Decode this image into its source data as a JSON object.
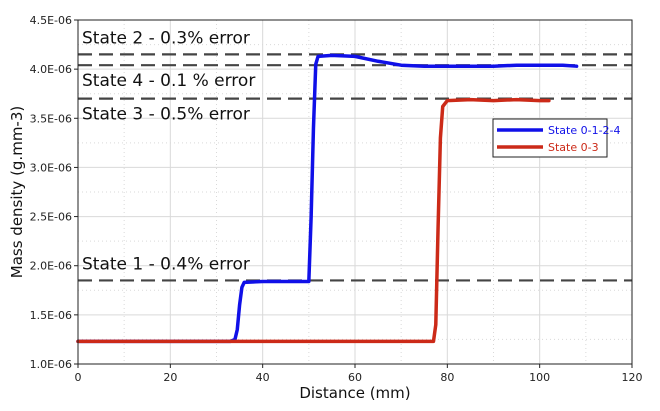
{
  "chart_data": {
    "type": "line",
    "xlabel": "Distance (mm)",
    "ylabel": "Mass density (g.mm-3)",
    "xlim": [
      0,
      120
    ],
    "ylim": [
      1e-06,
      4.5e-06
    ],
    "x_ticks": [
      "0",
      "20",
      "40",
      "60",
      "80",
      "100",
      "120"
    ],
    "y_ticks": [
      "1.0E-06",
      "1.5E-06",
      "2.0E-06",
      "2.5E-06",
      "3.0E-06",
      "3.5E-06",
      "4.0E-06",
      "4.5E-06"
    ],
    "grid": true,
    "legend_position": "right",
    "series": [
      {
        "name": "State 0-1-2-4",
        "color": "#1010e8",
        "points": [
          [
            0,
            1.23e-06
          ],
          [
            33,
            1.23e-06
          ],
          [
            34,
            1.25e-06
          ],
          [
            34.5,
            1.35e-06
          ],
          [
            35,
            1.6e-06
          ],
          [
            35.5,
            1.78e-06
          ],
          [
            36,
            1.83e-06
          ],
          [
            40,
            1.84e-06
          ],
          [
            45,
            1.84e-06
          ],
          [
            50,
            1.84e-06
          ],
          [
            50.5,
            2.5e-06
          ],
          [
            51,
            3.4e-06
          ],
          [
            51.5,
            4.05e-06
          ],
          [
            52,
            4.13e-06
          ],
          [
            55,
            4.14e-06
          ],
          [
            60,
            4.13e-06
          ],
          [
            65,
            4.08e-06
          ],
          [
            70,
            4.04e-06
          ],
          [
            75,
            4.03e-06
          ],
          [
            80,
            4.03e-06
          ],
          [
            85,
            4.03e-06
          ],
          [
            90,
            4.03e-06
          ],
          [
            95,
            4.04e-06
          ],
          [
            100,
            4.04e-06
          ],
          [
            105,
            4.04e-06
          ],
          [
            108,
            4.03e-06
          ]
        ]
      },
      {
        "name": "State 0-3",
        "color": "#cc2a18",
        "points": [
          [
            0,
            1.23e-06
          ],
          [
            20,
            1.23e-06
          ],
          [
            40,
            1.23e-06
          ],
          [
            60,
            1.23e-06
          ],
          [
            77,
            1.23e-06
          ],
          [
            77.5,
            1.4e-06
          ],
          [
            78,
            2.4e-06
          ],
          [
            78.5,
            3.3e-06
          ],
          [
            79,
            3.62e-06
          ],
          [
            80,
            3.68e-06
          ],
          [
            85,
            3.69e-06
          ],
          [
            90,
            3.68e-06
          ],
          [
            95,
            3.69e-06
          ],
          [
            100,
            3.68e-06
          ],
          [
            102,
            3.68e-06
          ]
        ]
      }
    ],
    "reference_lines": [
      {
        "y": 4.15e-06,
        "label": "State 2 - 0.3% error"
      },
      {
        "y": 4.04e-06,
        "label": "State 4 - 0.1 % error"
      },
      {
        "y": 3.7e-06,
        "label": "State 3 - 0.5% error"
      },
      {
        "y": 1.85e-06,
        "label": "State 1 - 0.4% error"
      }
    ]
  }
}
